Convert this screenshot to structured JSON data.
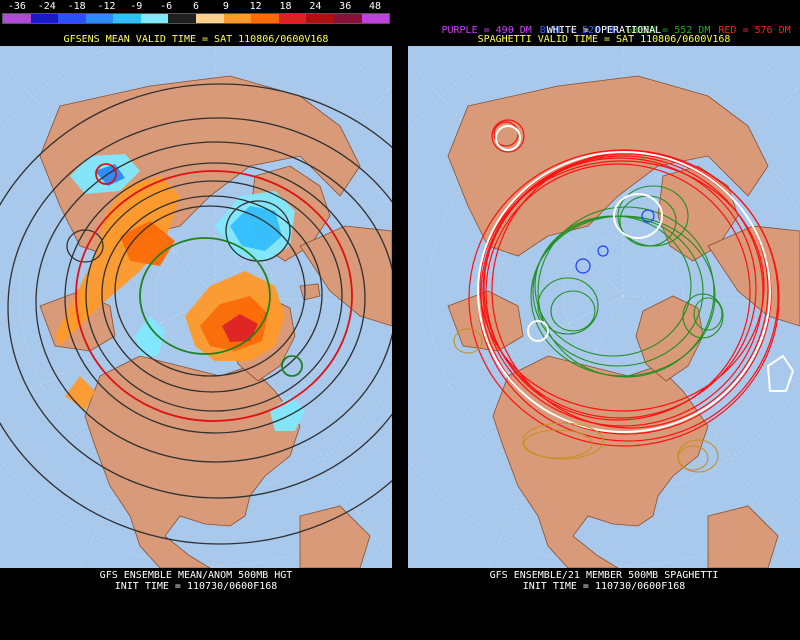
{
  "left_panel": {
    "scale_labels": [
      "-36",
      "-24",
      "-18",
      "-12",
      "-9",
      "-6",
      "6",
      "9",
      "12",
      "18",
      "24",
      "36",
      "48"
    ],
    "scale_colors": [
      "#b04ad8",
      "#1a1acc",
      "#2a50ff",
      "#2a8cff",
      "#30c0ff",
      "#80e8ff",
      "#202020",
      "#ffd08a",
      "#ff9a2a",
      "#ff6a00",
      "#e02020",
      "#b01010",
      "#8a1038",
      "#c040e0"
    ],
    "title": "GFSENS MEAN VALID TIME = SAT 110806/0600V168",
    "footer_line1": "GFS ENSEMBLE MEAN/ANOM 500MB HGT",
    "footer_line2": "INIT TIME = 110730/0600F168"
  },
  "right_panel": {
    "legend": [
      {
        "text": "PURPLE = 490 DM",
        "color": "#d040ff"
      },
      {
        "text": "BLUE = 528 DM",
        "color": "#3060ff"
      },
      {
        "text": "GREEN = 552 DM",
        "color": "#20b020"
      },
      {
        "text": "RED = 576 DM",
        "color": "#ff2020"
      }
    ],
    "operational": "WHITE = OPERATIONAL",
    "title": "SPAGHETTI VALID TIME = SAT 110806/0600V168",
    "footer_line1": "GFS ENSEMBLE/21 MEMBER 500MB SPAGHETTI",
    "footer_line2": "INIT TIME = 110730/0600F168"
  },
  "colors": {
    "ocean": "#a8c8ec",
    "land": "#d89a78",
    "border": "#9a5a3a",
    "header_yellow": "#ffff40"
  }
}
